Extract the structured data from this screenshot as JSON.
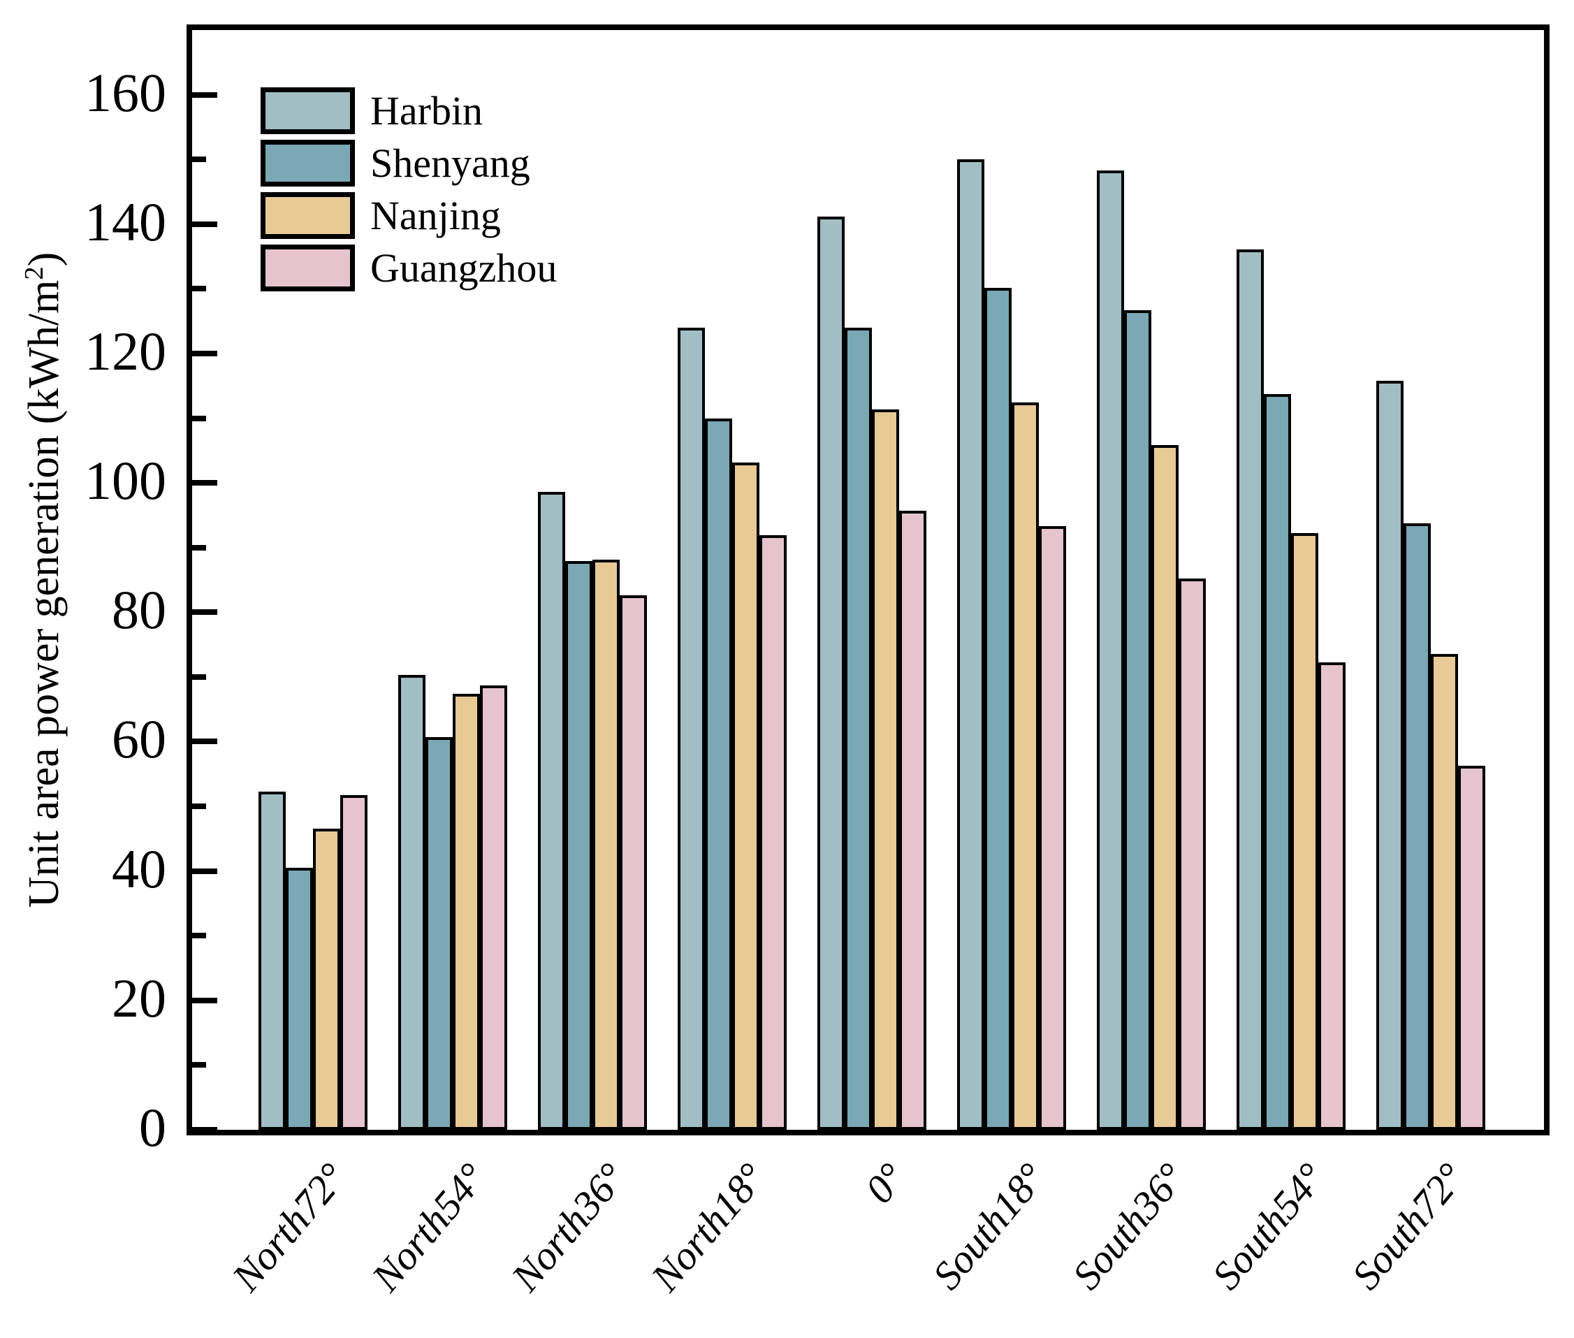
{
  "chart_data": {
    "type": "bar",
    "title": "",
    "ylabel_parts": {
      "base": "Unit area power generation (kWh/m",
      "sup": "2",
      "close": ")"
    },
    "ylabel_text": "Unit area power generation (kWh/m2)",
    "xlabel": "",
    "categories": [
      "North72°",
      "North54°",
      "North36°",
      "North18°",
      "0°",
      "South18°",
      "South36°",
      "South54°",
      "South72°"
    ],
    "series": [
      {
        "name": "Harbin",
        "color": "#a2bec5",
        "values": [
          52.3,
          70.3,
          98.6,
          124.0,
          141.2,
          150.0,
          148.3,
          136.1,
          115.8
        ]
      },
      {
        "name": "Shenyang",
        "color": "#7aa8b5",
        "values": [
          40.5,
          60.7,
          87.9,
          110.0,
          124.0,
          130.2,
          126.7,
          113.7,
          93.8
        ]
      },
      {
        "name": "Nanjing",
        "color": "#e7ca96",
        "values": [
          46.6,
          67.4,
          88.1,
          103.1,
          111.3,
          112.4,
          105.8,
          92.2,
          73.6
        ]
      },
      {
        "name": "Guangzhou",
        "color": "#e5c4cd",
        "values": [
          51.7,
          68.7,
          82.6,
          91.9,
          95.7,
          93.3,
          85.2,
          72.3,
          56.3
        ]
      }
    ],
    "ylim": [
      0,
      170
    ],
    "yticks_major": [
      0,
      20,
      40,
      60,
      80,
      100,
      120,
      140,
      160
    ],
    "ytick_minor_step": 10,
    "grid": false,
    "legend_position": "upper left",
    "bar_edge_color": "#000000",
    "background_color": "#ffffff"
  }
}
